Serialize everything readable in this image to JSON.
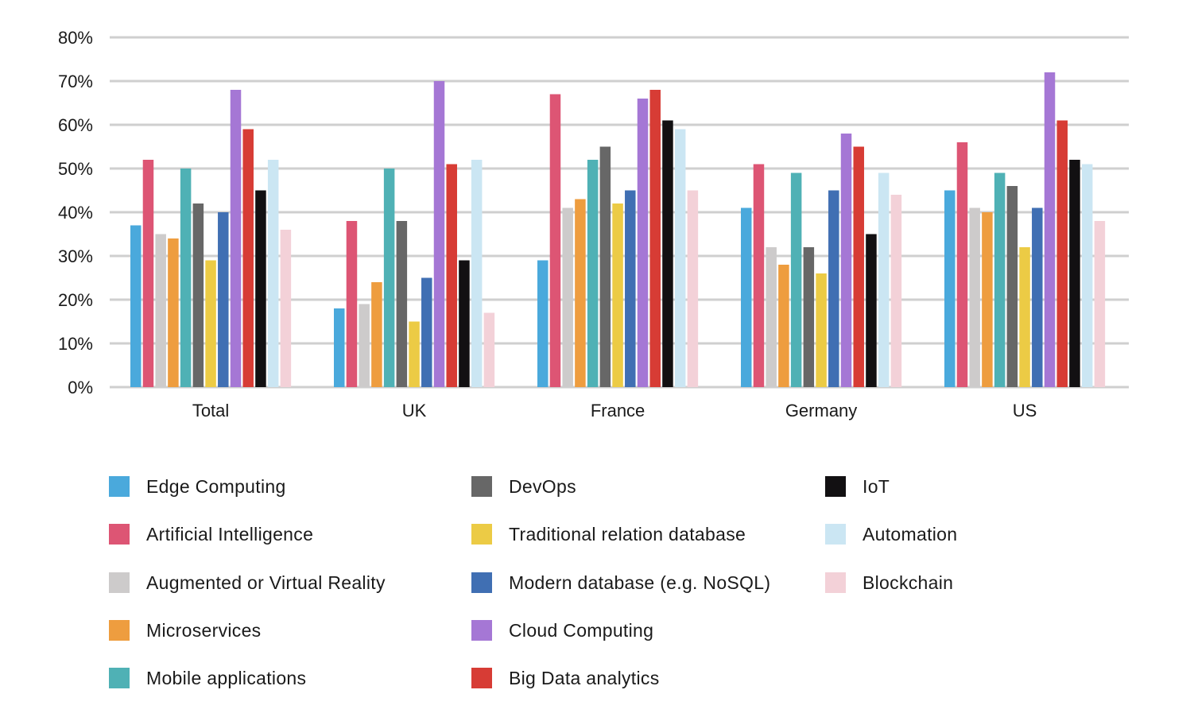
{
  "chart_data": {
    "type": "bar",
    "categories": [
      "Total",
      "UK",
      "France",
      "Germany",
      "US"
    ],
    "ylim": [
      0,
      80
    ],
    "yticks": [
      "0%",
      "10%",
      "20%",
      "30%",
      "40%",
      "50%",
      "60%",
      "70%",
      "80%"
    ],
    "grid": true,
    "legend_placement": "bottom",
    "series": [
      {
        "name": "Edge Computing",
        "color": "#4aa9dc",
        "values": [
          37,
          18,
          29,
          41,
          45
        ]
      },
      {
        "name": "Artificial Intelligence",
        "color": "#dd5574",
        "values": [
          52,
          38,
          67,
          51,
          56
        ]
      },
      {
        "name": "Augmented or Virtual Reality",
        "color": "#cdcbcb",
        "values": [
          35,
          19,
          41,
          32,
          41
        ]
      },
      {
        "name": "Microservices",
        "color": "#ee9d3f",
        "values": [
          34,
          24,
          43,
          28,
          40
        ]
      },
      {
        "name": "Mobile applications",
        "color": "#4fb1b5",
        "values": [
          50,
          50,
          52,
          49,
          49
        ]
      },
      {
        "name": "DevOps",
        "color": "#676767",
        "values": [
          42,
          38,
          55,
          32,
          46
        ]
      },
      {
        "name": "Traditional relation database",
        "color": "#eccb45",
        "values": [
          29,
          15,
          42,
          26,
          32
        ]
      },
      {
        "name": "Modern database (e.g. NoSQL)",
        "color": "#406fb3",
        "values": [
          40,
          25,
          45,
          45,
          41
        ]
      },
      {
        "name": "Cloud Computing",
        "color": "#a577d5",
        "values": [
          68,
          70,
          66,
          58,
          72
        ]
      },
      {
        "name": "Big Data analytics",
        "color": "#d73c35",
        "values": [
          59,
          51,
          68,
          55,
          61
        ]
      },
      {
        "name": "IoT",
        "color": "#121012",
        "values": [
          45,
          29,
          61,
          35,
          52
        ]
      },
      {
        "name": "Automation",
        "color": "#cbe6f3",
        "values": [
          52,
          52,
          59,
          49,
          51
        ]
      },
      {
        "name": "Blockchain",
        "color": "#f3d1d8",
        "values": [
          36,
          17,
          45,
          44,
          38
        ]
      }
    ]
  }
}
